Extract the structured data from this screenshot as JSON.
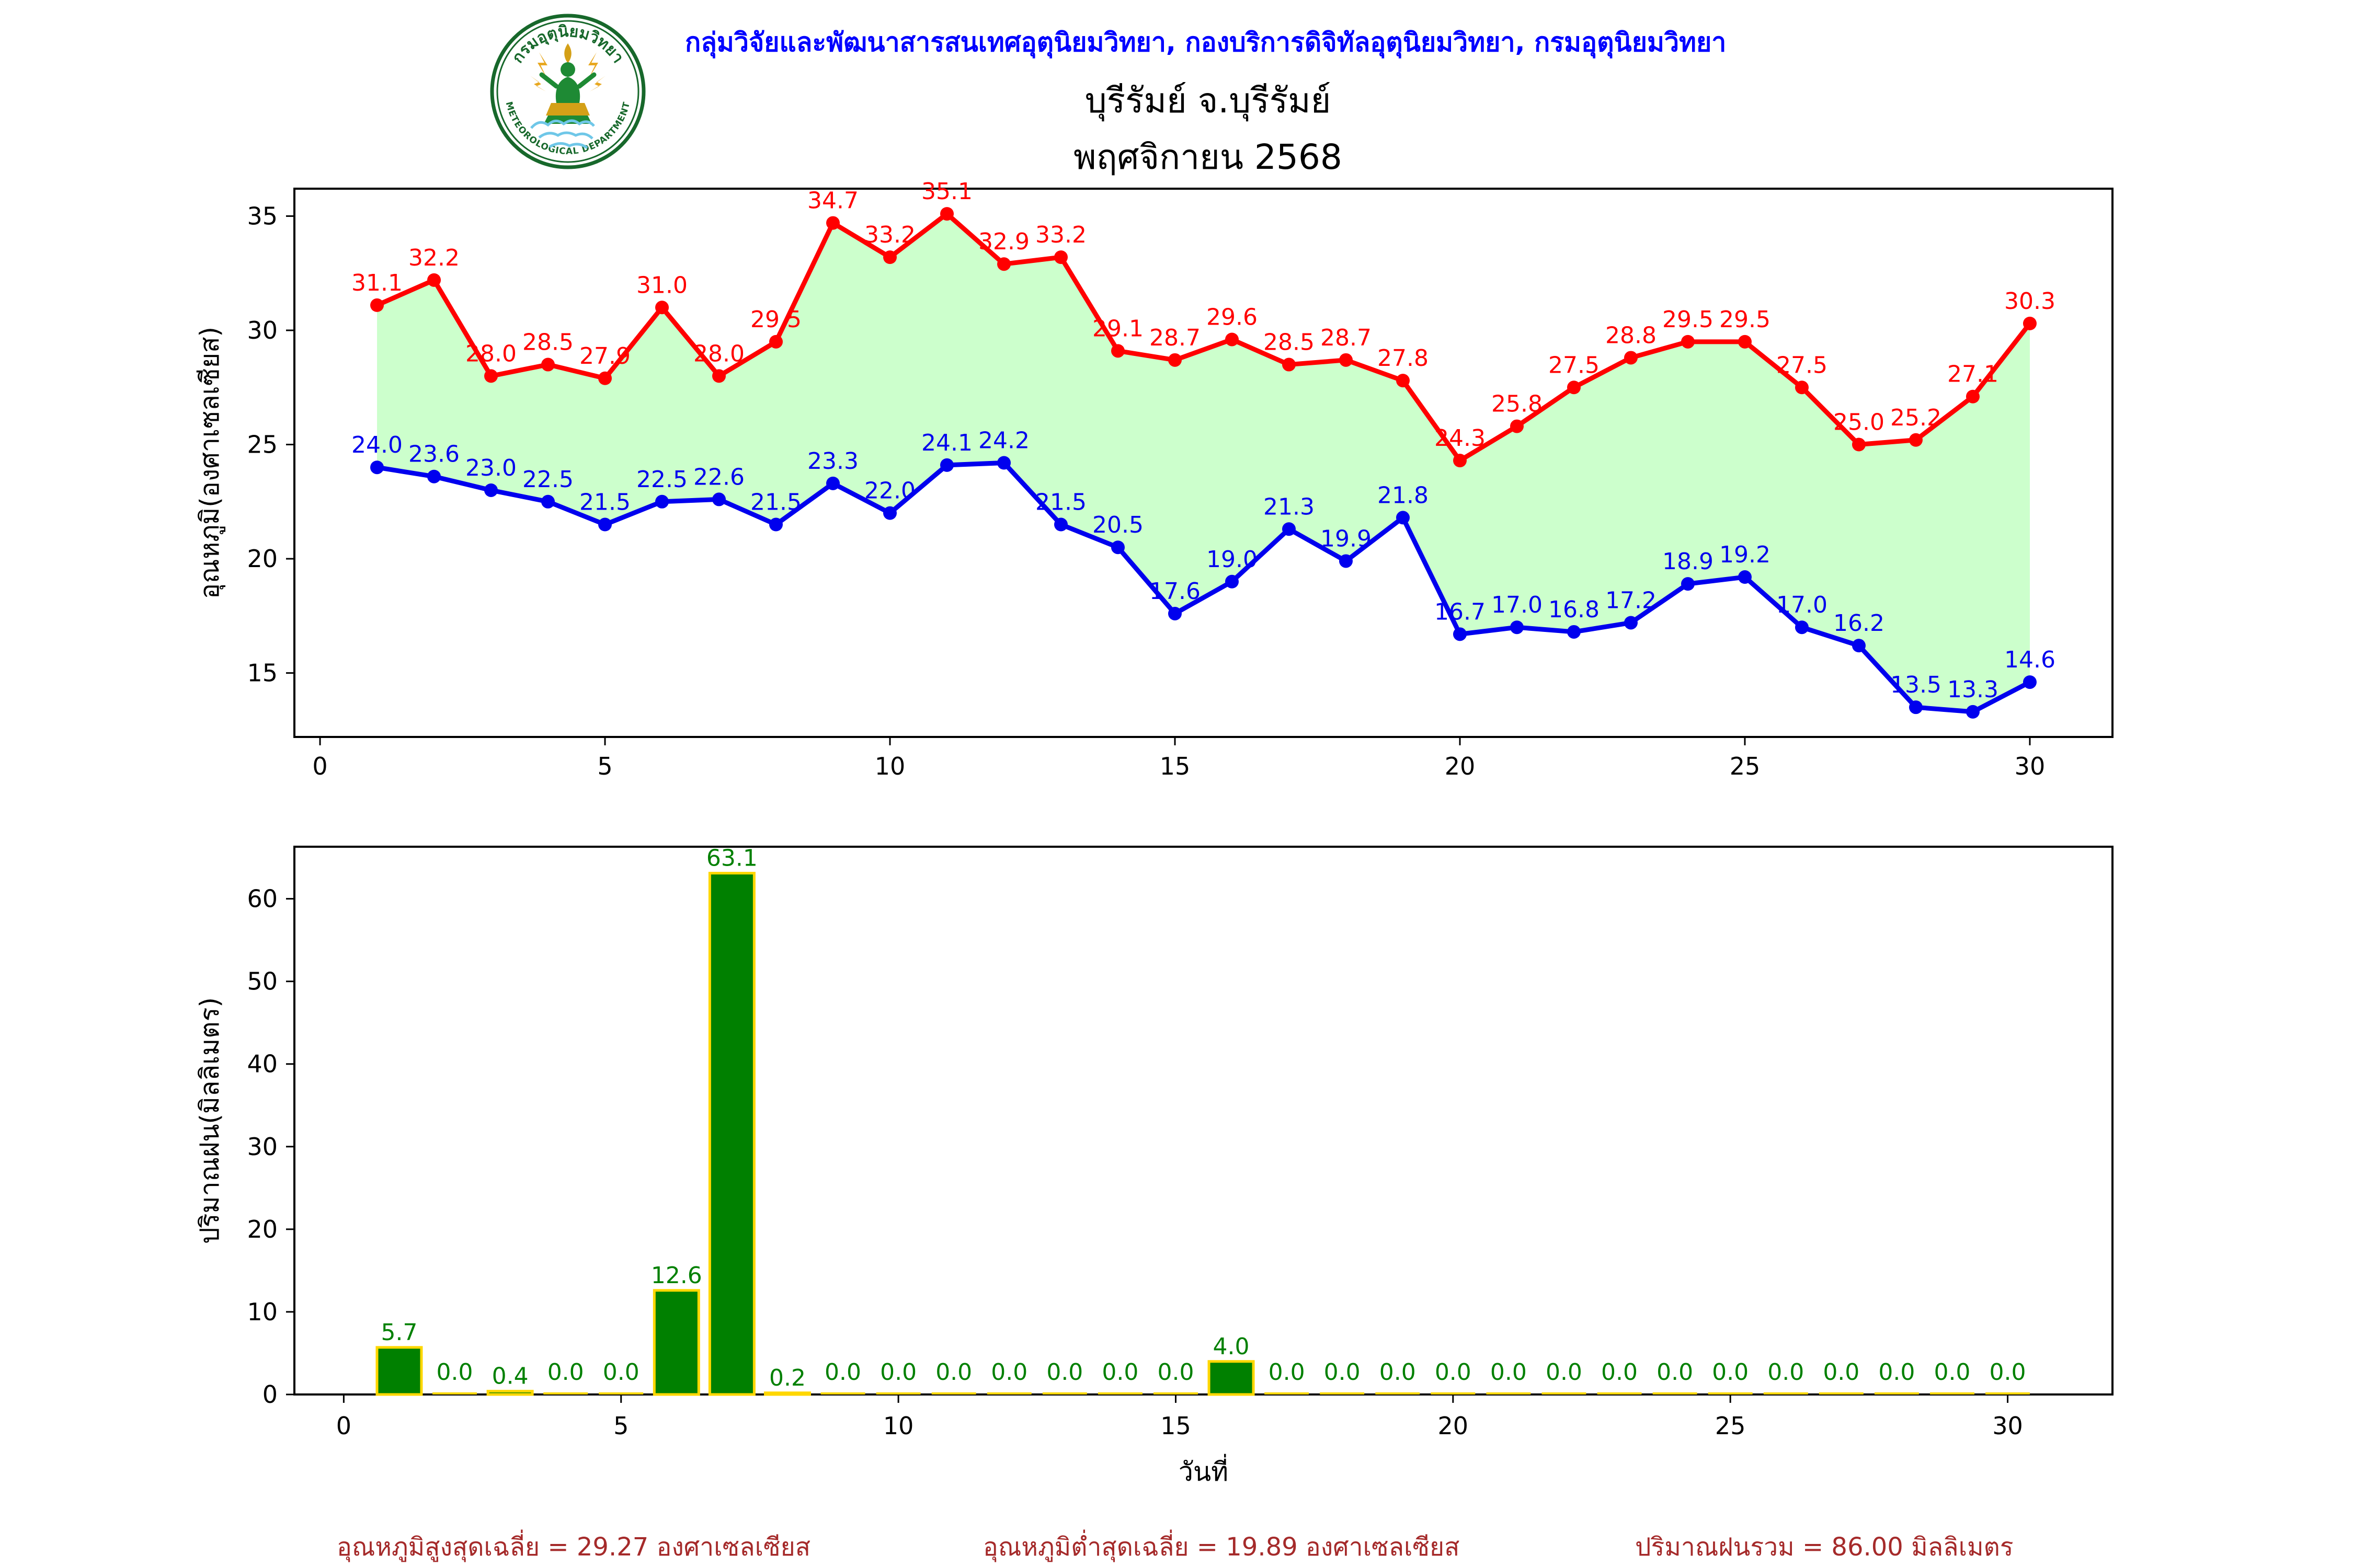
{
  "header": {
    "agency_line": "กลุ่มวิจัยและพัฒนาสารสนเทศอุตุนิยมวิทยา, กองบริการดิจิทัลอุตุนิยมวิทยา, กรมอุตุนิยมวิทยา"
  },
  "logo": {
    "top_arc_text": "กรมอุตุนิยมวิทยา",
    "bottom_arc_text": "METEOROLOGICAL DEPARTMENT"
  },
  "title": {
    "line1": "บุรีรัมย์ จ.บุรีรัมย์",
    "line2": "พฤศจิกายน 2568"
  },
  "footer": {
    "stats": [
      "อุณหภูมิสูงสุดเฉลี่ย = 29.27 องศาเซลเซียส",
      "อุณหภูมิต่ำสุดเฉลี่ย = 19.89 องศาเซลเซียส",
      "ปริมาณฝนรวม = 86.00 มิลลิเมตร"
    ]
  },
  "colors": {
    "max_temp": "#ff0000",
    "min_temp": "#0000ee",
    "fill_between": "#ccffcc",
    "bar_fill": "#008000",
    "bar_edge": "#ffd700",
    "bar_label": "#008000",
    "header_text": "#0000ff",
    "footer_text": "#a52a2a",
    "axis": "#000000"
  },
  "chart_data": [
    {
      "type": "line",
      "title": "",
      "xlabel": "",
      "ylabel": "อุณหภูมิ(องศาเซลเซียส)",
      "x": [
        1,
        2,
        3,
        4,
        5,
        6,
        7,
        8,
        9,
        10,
        11,
        12,
        13,
        14,
        15,
        16,
        17,
        18,
        19,
        20,
        21,
        22,
        23,
        24,
        25,
        26,
        27,
        28,
        29,
        30
      ],
      "series": [
        {
          "name": "max-temp",
          "color": "#ff0000",
          "values": [
            31.1,
            32.2,
            28.0,
            28.5,
            27.9,
            31.0,
            28.0,
            29.5,
            34.7,
            33.2,
            35.1,
            32.9,
            33.2,
            29.1,
            28.7,
            29.6,
            28.5,
            28.7,
            27.8,
            24.3,
            25.8,
            27.5,
            28.8,
            29.5,
            29.5,
            27.5,
            25.0,
            25.2,
            27.1,
            30.3
          ]
        },
        {
          "name": "min-temp",
          "color": "#0000ee",
          "values": [
            24.0,
            23.6,
            23.0,
            22.5,
            21.5,
            22.5,
            22.6,
            21.5,
            23.3,
            22.0,
            24.1,
            24.2,
            21.5,
            20.5,
            17.6,
            19.0,
            21.3,
            19.9,
            21.8,
            16.7,
            17.0,
            16.8,
            17.2,
            18.9,
            19.2,
            17.0,
            16.2,
            13.5,
            13.3,
            14.6
          ]
        }
      ],
      "fill_between": true,
      "fill_color": "#ccffcc",
      "xticks": [
        0,
        5,
        10,
        15,
        20,
        25,
        30
      ],
      "yticks": [
        15,
        20,
        25,
        30,
        35
      ],
      "xlim": [
        -0.45,
        31.45
      ],
      "ylim": [
        12.2,
        36.2
      ],
      "grid": false,
      "legend": "none"
    },
    {
      "type": "bar",
      "title": "",
      "xlabel": "วันที่",
      "ylabel": "ปริมาณฝน(มิลลิเมตร)",
      "x": [
        1,
        2,
        3,
        4,
        5,
        6,
        7,
        8,
        9,
        10,
        11,
        12,
        13,
        14,
        15,
        16,
        17,
        18,
        19,
        20,
        21,
        22,
        23,
        24,
        25,
        26,
        27,
        28,
        29,
        30
      ],
      "values": [
        5.7,
        0.0,
        0.4,
        0.0,
        0.0,
        12.6,
        63.1,
        0.2,
        0.0,
        0.0,
        0.0,
        0.0,
        0.0,
        0.0,
        0.0,
        4.0,
        0.0,
        0.0,
        0.0,
        0.0,
        0.0,
        0.0,
        0.0,
        0.0,
        0.0,
        0.0,
        0.0,
        0.0,
        0.0,
        0.0
      ],
      "bar_color": "#008000",
      "bar_edge_color": "#ffd700",
      "label_color": "#008000",
      "xticks": [
        0,
        5,
        10,
        15,
        20,
        25,
        30
      ],
      "yticks": [
        0,
        10,
        20,
        30,
        40,
        50,
        60
      ],
      "xlim": [
        -0.89,
        31.89
      ],
      "ylim": [
        0,
        66.3
      ],
      "grid": false,
      "legend": "none"
    }
  ]
}
